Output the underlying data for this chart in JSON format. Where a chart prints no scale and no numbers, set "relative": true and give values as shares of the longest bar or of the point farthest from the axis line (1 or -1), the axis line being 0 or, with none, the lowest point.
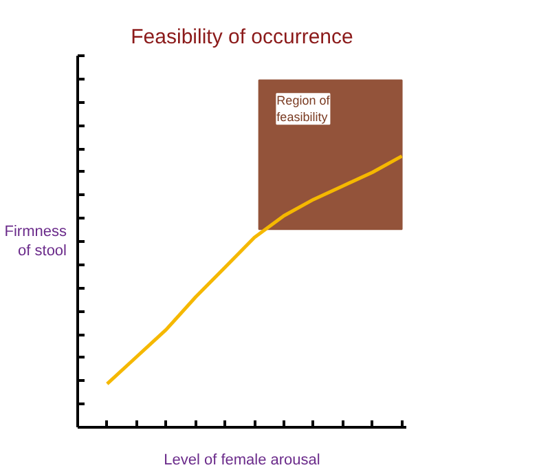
{
  "chart_data": {
    "type": "line",
    "title": "Feasibility of occurrence",
    "xlabel": "Level of female arousal",
    "ylabel": "Firmness\nof stool",
    "relative": true,
    "categories": [
      null,
      null,
      null,
      null,
      null,
      null,
      null,
      null,
      null,
      null,
      null
    ],
    "series": [
      {
        "color": "#f5b800",
        "values": [
          0.16,
          0.26,
          0.36,
          0.48,
          0.59,
          0.7,
          0.78,
          0.84,
          0.89,
          0.94,
          1
        ]
      }
    ],
    "annotations": [
      "Region of\nfeasibility"
    ],
    "grid": false,
    "tick_labels": false,
    "line_style": "solid",
    "marker": "none"
  }
}
